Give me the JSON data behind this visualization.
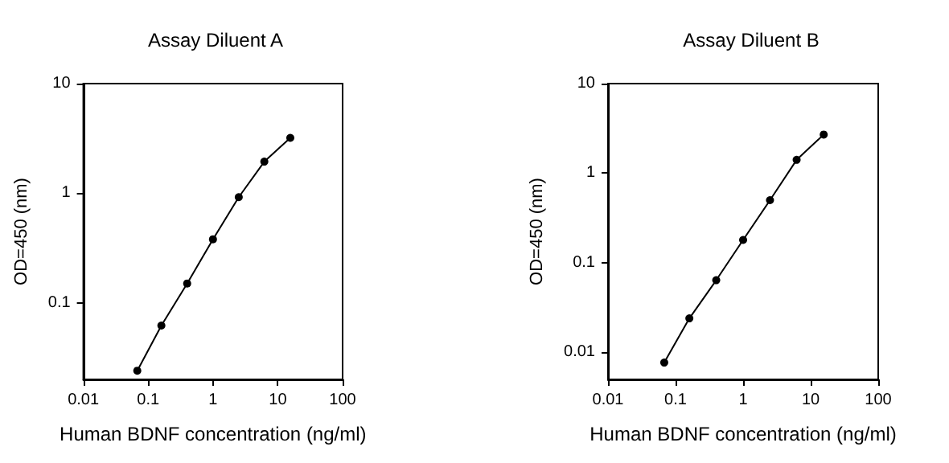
{
  "chart_data": [
    {
      "type": "line",
      "title": "Assay Diluent A",
      "xlabel": "Human BDNF concentration (ng/ml)",
      "ylabel": "OD=450 (nm)",
      "x": [
        0.068,
        0.16,
        0.4,
        1,
        2.5,
        6.2,
        15.6
      ],
      "values": [
        0.024,
        0.062,
        0.15,
        0.38,
        0.92,
        1.94,
        3.2
      ],
      "color": "#000000",
      "xlim": [
        0.01,
        100
      ],
      "ylim": [
        0.02,
        10
      ],
      "xticks": [
        0.01,
        0.1,
        1,
        10,
        100
      ],
      "yticks": [
        0.1,
        1,
        10
      ],
      "log": "xy",
      "marker": "circle",
      "line_style": "solid"
    },
    {
      "type": "line",
      "title": "Assay Diluent B",
      "xlabel": "Human BDNF concentration (ng/ml)",
      "ylabel": "OD=450 (nm)",
      "x": [
        0.068,
        0.16,
        0.4,
        1,
        2.5,
        6.2,
        15.6
      ],
      "values": [
        0.0077,
        0.024,
        0.064,
        0.18,
        0.5,
        1.41,
        2.7
      ],
      "color": "#000000",
      "xlim": [
        0.01,
        100
      ],
      "ylim": [
        0.005,
        10
      ],
      "xticks": [
        0.01,
        0.1,
        1,
        10,
        100
      ],
      "yticks": [
        0.01,
        0.1,
        1,
        10
      ],
      "log": "xy",
      "marker": "circle",
      "line_style": "solid"
    }
  ]
}
